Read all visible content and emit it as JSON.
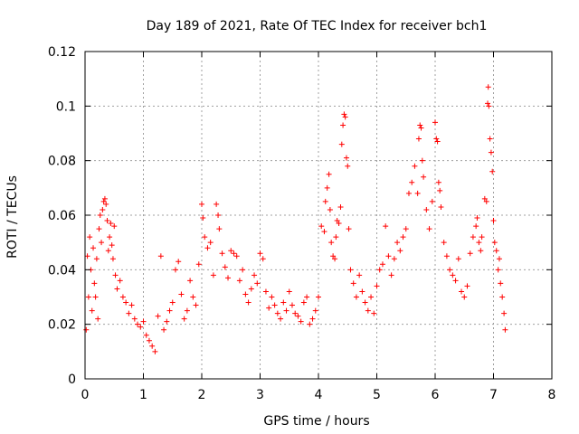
{
  "chart_data": {
    "type": "scatter",
    "title": "Day 189 of 2021, Rate Of TEC Index for receiver bch1",
    "xlabel": "GPS time / hours",
    "ylabel": "ROTI / TECUs",
    "xlim": [
      0,
      8
    ],
    "ylim": [
      0,
      0.12
    ],
    "xticks": [
      0,
      1,
      2,
      3,
      4,
      5,
      6,
      7,
      8
    ],
    "xtick_labels": [
      "0",
      "1",
      "2",
      "3",
      "4",
      "5",
      "6",
      "7",
      "8"
    ],
    "yticks": [
      0,
      0.02,
      0.04,
      0.06,
      0.08,
      0.1,
      0.12
    ],
    "ytick_labels": [
      "0",
      "0.02",
      "0.04",
      "0.06",
      "0.08",
      "0.1",
      "0.12"
    ],
    "grid": true,
    "marker": "plus",
    "color": "#ff0000",
    "series": [
      {
        "name": "bch1",
        "points": [
          [
            0.02,
            0.018
          ],
          [
            0.04,
            0.045
          ],
          [
            0.06,
            0.03
          ],
          [
            0.08,
            0.052
          ],
          [
            0.1,
            0.04
          ],
          [
            0.12,
            0.025
          ],
          [
            0.14,
            0.048
          ],
          [
            0.16,
            0.035
          ],
          [
            0.18,
            0.03
          ],
          [
            0.2,
            0.044
          ],
          [
            0.22,
            0.022
          ],
          [
            0.24,
            0.055
          ],
          [
            0.26,
            0.06
          ],
          [
            0.28,
            0.05
          ],
          [
            0.3,
            0.062
          ],
          [
            0.32,
            0.065
          ],
          [
            0.34,
            0.066
          ],
          [
            0.36,
            0.064
          ],
          [
            0.38,
            0.058
          ],
          [
            0.4,
            0.047
          ],
          [
            0.42,
            0.052
          ],
          [
            0.44,
            0.057
          ],
          [
            0.46,
            0.049
          ],
          [
            0.48,
            0.044
          ],
          [
            0.5,
            0.056
          ],
          [
            0.52,
            0.038
          ],
          [
            0.55,
            0.033
          ],
          [
            0.6,
            0.036
          ],
          [
            0.65,
            0.03
          ],
          [
            0.7,
            0.028
          ],
          [
            0.75,
            0.024
          ],
          [
            0.8,
            0.027
          ],
          [
            0.85,
            0.022
          ],
          [
            0.9,
            0.02
          ],
          [
            0.95,
            0.019
          ],
          [
            1.0,
            0.021
          ],
          [
            1.05,
            0.016
          ],
          [
            1.1,
            0.014
          ],
          [
            1.15,
            0.012
          ],
          [
            1.2,
            0.01
          ],
          [
            1.25,
            0.023
          ],
          [
            1.3,
            0.045
          ],
          [
            1.35,
            0.018
          ],
          [
            1.4,
            0.021
          ],
          [
            1.45,
            0.025
          ],
          [
            1.5,
            0.028
          ],
          [
            1.55,
            0.04
          ],
          [
            1.6,
            0.043
          ],
          [
            1.65,
            0.031
          ],
          [
            1.7,
            0.022
          ],
          [
            1.75,
            0.025
          ],
          [
            1.8,
            0.036
          ],
          [
            1.85,
            0.03
          ],
          [
            1.9,
            0.027
          ],
          [
            1.95,
            0.042
          ],
          [
            2.0,
            0.064
          ],
          [
            2.02,
            0.059
          ],
          [
            2.05,
            0.052
          ],
          [
            2.1,
            0.048
          ],
          [
            2.15,
            0.05
          ],
          [
            2.2,
            0.038
          ],
          [
            2.25,
            0.064
          ],
          [
            2.28,
            0.06
          ],
          [
            2.3,
            0.055
          ],
          [
            2.35,
            0.046
          ],
          [
            2.4,
            0.041
          ],
          [
            2.45,
            0.037
          ],
          [
            2.5,
            0.047
          ],
          [
            2.55,
            0.046
          ],
          [
            2.6,
            0.045
          ],
          [
            2.65,
            0.036
          ],
          [
            2.7,
            0.04
          ],
          [
            2.75,
            0.031
          ],
          [
            2.8,
            0.028
          ],
          [
            2.85,
            0.033
          ],
          [
            2.9,
            0.038
          ],
          [
            2.95,
            0.035
          ],
          [
            3.0,
            0.046
          ],
          [
            3.05,
            0.044
          ],
          [
            3.1,
            0.032
          ],
          [
            3.15,
            0.026
          ],
          [
            3.2,
            0.03
          ],
          [
            3.25,
            0.027
          ],
          [
            3.3,
            0.024
          ],
          [
            3.35,
            0.022
          ],
          [
            3.4,
            0.028
          ],
          [
            3.45,
            0.025
          ],
          [
            3.5,
            0.032
          ],
          [
            3.55,
            0.027
          ],
          [
            3.6,
            0.024
          ],
          [
            3.65,
            0.023
          ],
          [
            3.7,
            0.021
          ],
          [
            3.75,
            0.028
          ],
          [
            3.8,
            0.03
          ],
          [
            3.85,
            0.02
          ],
          [
            3.9,
            0.022
          ],
          [
            3.95,
            0.025
          ],
          [
            4.0,
            0.03
          ],
          [
            4.05,
            0.056
          ],
          [
            4.1,
            0.054
          ],
          [
            4.12,
            0.065
          ],
          [
            4.15,
            0.07
          ],
          [
            4.18,
            0.075
          ],
          [
            4.2,
            0.062
          ],
          [
            4.22,
            0.05
          ],
          [
            4.25,
            0.045
          ],
          [
            4.28,
            0.044
          ],
          [
            4.3,
            0.052
          ],
          [
            4.32,
            0.058
          ],
          [
            4.35,
            0.057
          ],
          [
            4.38,
            0.063
          ],
          [
            4.4,
            0.086
          ],
          [
            4.42,
            0.093
          ],
          [
            4.44,
            0.097
          ],
          [
            4.46,
            0.096
          ],
          [
            4.48,
            0.081
          ],
          [
            4.5,
            0.078
          ],
          [
            4.52,
            0.055
          ],
          [
            4.55,
            0.04
          ],
          [
            4.6,
            0.035
          ],
          [
            4.65,
            0.03
          ],
          [
            4.7,
            0.038
          ],
          [
            4.75,
            0.032
          ],
          [
            4.8,
            0.028
          ],
          [
            4.85,
            0.025
          ],
          [
            4.9,
            0.03
          ],
          [
            4.95,
            0.024
          ],
          [
            5.0,
            0.034
          ],
          [
            5.05,
            0.04
          ],
          [
            5.1,
            0.042
          ],
          [
            5.15,
            0.056
          ],
          [
            5.2,
            0.045
          ],
          [
            5.25,
            0.038
          ],
          [
            5.3,
            0.044
          ],
          [
            5.35,
            0.05
          ],
          [
            5.4,
            0.047
          ],
          [
            5.45,
            0.052
          ],
          [
            5.5,
            0.055
          ],
          [
            5.55,
            0.068
          ],
          [
            5.6,
            0.072
          ],
          [
            5.65,
            0.078
          ],
          [
            5.7,
            0.068
          ],
          [
            5.72,
            0.088
          ],
          [
            5.74,
            0.093
          ],
          [
            5.76,
            0.092
          ],
          [
            5.78,
            0.08
          ],
          [
            5.8,
            0.074
          ],
          [
            5.85,
            0.062
          ],
          [
            5.9,
            0.055
          ],
          [
            5.95,
            0.065
          ],
          [
            6.0,
            0.094
          ],
          [
            6.02,
            0.088
          ],
          [
            6.04,
            0.087
          ],
          [
            6.06,
            0.072
          ],
          [
            6.08,
            0.069
          ],
          [
            6.1,
            0.063
          ],
          [
            6.15,
            0.05
          ],
          [
            6.2,
            0.045
          ],
          [
            6.25,
            0.04
          ],
          [
            6.3,
            0.038
          ],
          [
            6.35,
            0.036
          ],
          [
            6.4,
            0.044
          ],
          [
            6.45,
            0.032
          ],
          [
            6.5,
            0.03
          ],
          [
            6.55,
            0.034
          ],
          [
            6.6,
            0.046
          ],
          [
            6.65,
            0.052
          ],
          [
            6.7,
            0.056
          ],
          [
            6.72,
            0.059
          ],
          [
            6.75,
            0.05
          ],
          [
            6.78,
            0.047
          ],
          [
            6.8,
            0.052
          ],
          [
            6.85,
            0.066
          ],
          [
            6.88,
            0.065
          ],
          [
            6.9,
            0.101
          ],
          [
            6.91,
            0.107
          ],
          [
            6.92,
            0.1
          ],
          [
            6.94,
            0.088
          ],
          [
            6.96,
            0.083
          ],
          [
            6.98,
            0.076
          ],
          [
            7.0,
            0.058
          ],
          [
            7.02,
            0.05
          ],
          [
            7.05,
            0.047
          ],
          [
            7.08,
            0.04
          ],
          [
            7.1,
            0.044
          ],
          [
            7.12,
            0.035
          ],
          [
            7.15,
            0.03
          ],
          [
            7.18,
            0.024
          ],
          [
            7.2,
            0.018
          ]
        ]
      }
    ]
  }
}
